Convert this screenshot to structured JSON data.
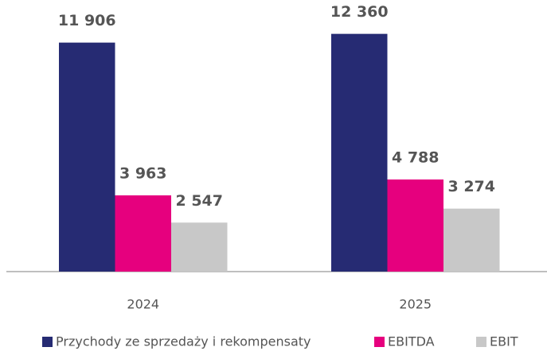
{
  "chart_data": {
    "type": "bar",
    "categories": [
      "2024",
      "2025"
    ],
    "series": [
      {
        "name": "Przychody ze sprzedaży i rekompensaty",
        "color": "#262b73",
        "values": [
          11906,
          12360
        ],
        "value_labels": [
          "11 906",
          "12 360"
        ]
      },
      {
        "name": "EBITDA",
        "color": "#e6007e",
        "values": [
          3963,
          4788
        ],
        "value_labels": [
          "3 963",
          "4 788"
        ]
      },
      {
        "name": "EBIT",
        "color": "#c8c8c8",
        "values": [
          2547,
          3274
        ],
        "value_labels": [
          "2 547",
          "3 274"
        ]
      }
    ]
  }
}
